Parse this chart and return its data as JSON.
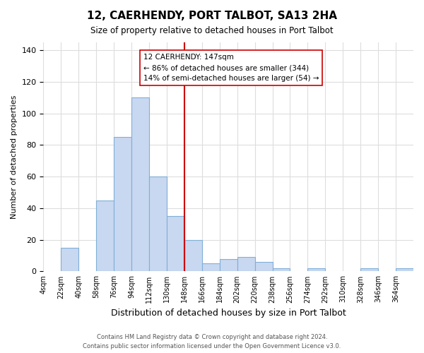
{
  "title": "12, CAERHENDY, PORT TALBOT, SA13 2HA",
  "subtitle": "Size of property relative to detached houses in Port Talbot",
  "xlabel": "Distribution of detached houses by size in Port Talbot",
  "ylabel": "Number of detached properties",
  "bin_labels": [
    "4sqm",
    "22sqm",
    "40sqm",
    "58sqm",
    "76sqm",
    "94sqm",
    "112sqm",
    "130sqm",
    "148sqm",
    "166sqm",
    "184sqm",
    "202sqm",
    "220sqm",
    "238sqm",
    "256sqm",
    "274sqm",
    "292sqm",
    "310sqm",
    "328sqm",
    "346sqm",
    "364sqm"
  ],
  "bin_edges": [
    4,
    22,
    40,
    58,
    76,
    94,
    112,
    130,
    148,
    166,
    184,
    202,
    220,
    238,
    256,
    274,
    292,
    310,
    328,
    346,
    364
  ],
  "bar_heights": [
    0,
    15,
    0,
    45,
    85,
    110,
    60,
    35,
    20,
    5,
    8,
    9,
    6,
    2,
    0,
    2,
    0,
    0,
    2,
    0,
    2
  ],
  "bar_color": "#c8d8f0",
  "bar_edge_color": "#7fafd8",
  "vline_x": 148,
  "vline_color": "#cc0000",
  "ylim": [
    0,
    145
  ],
  "yticks": [
    0,
    20,
    40,
    60,
    80,
    100,
    120,
    140
  ],
  "annotation_line1": "12 CAERHENDY: 147sqm",
  "annotation_line2": "← 86% of detached houses are smaller (344)",
  "annotation_line3": "14% of semi-detached houses are larger (54) →",
  "footer_line1": "Contains HM Land Registry data © Crown copyright and database right 2024.",
  "footer_line2": "Contains public sector information licensed under the Open Government Licence v3.0.",
  "background_color": "#ffffff",
  "grid_color": "#dddddd"
}
